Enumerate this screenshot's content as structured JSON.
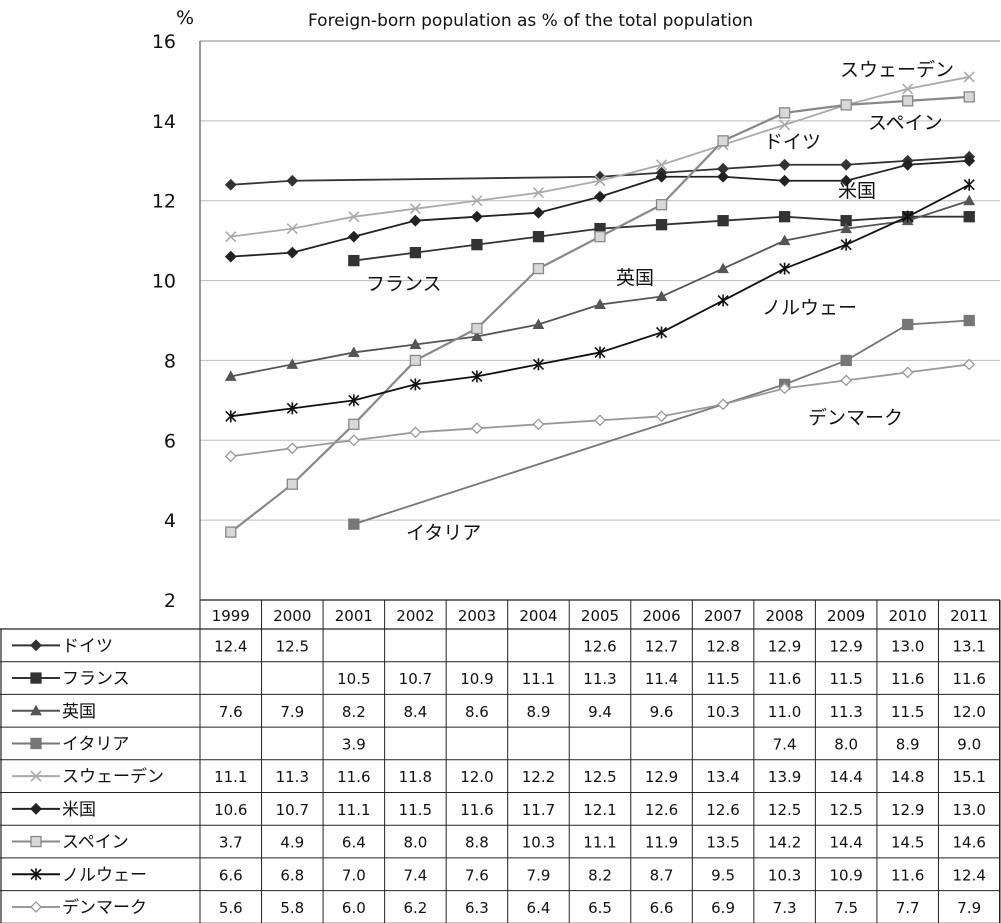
{
  "chart_data": {
    "type": "line",
    "title": "Foreign-born population as % of the total population",
    "ylabel": "%",
    "ylim": [
      2,
      16
    ],
    "yticks": [
      2,
      4,
      6,
      8,
      10,
      12,
      14,
      16
    ],
    "grid": true,
    "categories": [
      "1999",
      "2000",
      "2001",
      "2002",
      "2003",
      "2004",
      "2005",
      "2006",
      "2007",
      "2008",
      "2009",
      "2010",
      "2011"
    ],
    "series": [
      {
        "name": "ドイツ",
        "color": "#333333",
        "marker": "diamond-filled",
        "values": [
          12.4,
          12.5,
          null,
          null,
          null,
          null,
          12.6,
          12.7,
          12.8,
          12.9,
          12.9,
          13.0,
          13.1
        ]
      },
      {
        "name": "フランス",
        "color": "#333333",
        "marker": "square-filled",
        "values": [
          null,
          null,
          10.5,
          10.7,
          10.9,
          11.1,
          11.3,
          11.4,
          11.5,
          11.6,
          11.5,
          11.6,
          11.6
        ]
      },
      {
        "name": "英国",
        "color": "#555555",
        "marker": "triangle-filled",
        "values": [
          7.6,
          7.9,
          8.2,
          8.4,
          8.6,
          8.9,
          9.4,
          9.6,
          10.3,
          11.0,
          11.3,
          11.5,
          12.0
        ]
      },
      {
        "name": "イタリア",
        "color": "#777777",
        "marker": "square-filled",
        "values": [
          null,
          null,
          3.9,
          null,
          null,
          null,
          null,
          null,
          null,
          7.4,
          8.0,
          8.9,
          9.0
        ]
      },
      {
        "name": "スウェーデン",
        "color": "#aaaaaa",
        "marker": "x",
        "values": [
          11.1,
          11.3,
          11.6,
          11.8,
          12.0,
          12.2,
          12.5,
          12.9,
          13.4,
          13.9,
          14.4,
          14.8,
          15.1
        ]
      },
      {
        "name": "米国",
        "color": "#222222",
        "marker": "diamond-filled",
        "values": [
          10.6,
          10.7,
          11.1,
          11.5,
          11.6,
          11.7,
          12.1,
          12.6,
          12.6,
          12.5,
          12.5,
          12.9,
          13.0
        ]
      },
      {
        "name": "スペイン",
        "color": "#888888",
        "marker": "square-open",
        "values": [
          3.7,
          4.9,
          6.4,
          8.0,
          8.8,
          10.3,
          11.1,
          11.9,
          13.5,
          14.2,
          14.4,
          14.5,
          14.6
        ]
      },
      {
        "name": "ノルウェー",
        "color": "#111111",
        "marker": "star",
        "values": [
          6.6,
          6.8,
          7.0,
          7.4,
          7.6,
          7.9,
          8.2,
          8.7,
          9.5,
          10.3,
          10.9,
          11.6,
          12.4
        ]
      },
      {
        "name": "デンマーク",
        "color": "#999999",
        "marker": "diamond-open",
        "values": [
          5.6,
          5.8,
          6.0,
          6.2,
          6.3,
          6.4,
          6.5,
          6.6,
          6.9,
          7.3,
          7.5,
          7.7,
          7.9
        ]
      }
    ],
    "table_cells": [
      [
        "12.4",
        "12.5",
        "",
        "",
        "",
        "",
        "12.6",
        "12.7",
        "12.8",
        "12.9",
        "12.9",
        "13.0",
        "13.1"
      ],
      [
        "",
        "",
        "10.5",
        "10.7",
        "10.9",
        "11.1",
        "11.3",
        "11.4",
        "11.5",
        "11.6",
        "11.5",
        "11.6",
        "11.6"
      ],
      [
        "7.6",
        "7.9",
        "8.2",
        "8.4",
        "8.6",
        "8.9",
        "9.4",
        "9.6",
        "10.3",
        "11.0",
        "11.3",
        "11.5",
        "12.0"
      ],
      [
        "",
        "",
        "3.9",
        "",
        "",
        "",
        "",
        "",
        "",
        "7.4",
        "8.0",
        "8.9",
        "9.0"
      ],
      [
        "11.1",
        "11.3",
        "11.6",
        "11.8",
        "12.0",
        "12.2",
        "12.5",
        "12.9",
        "13.4",
        "13.9",
        "14.4",
        "14.8",
        "15.1"
      ],
      [
        "10.6",
        "10.7",
        "11.1",
        "11.5",
        "11.6",
        "11.7",
        "12.1",
        "12.6",
        "12.6",
        "12.5",
        "12.5",
        "12.9",
        "13.0"
      ],
      [
        "3.7",
        "4.9",
        "6.4",
        "8.0",
        "8.8",
        "10.3",
        "11.1",
        "11.9",
        "13.5",
        "14.2",
        "14.4",
        "14.5",
        "14.6"
      ],
      [
        "6.6",
        "6.8",
        "7.0",
        "7.4",
        "7.6",
        "7.9",
        "8.2",
        "8.7",
        "9.5",
        "10.3",
        "10.9",
        "11.6",
        "12.4"
      ],
      [
        "5.6",
        "5.8",
        "6.0",
        "6.2",
        "6.3",
        "6.4",
        "6.5",
        "6.6",
        "6.9",
        "7.3",
        "7.5",
        "7.7",
        "7.9"
      ]
    ],
    "annotations": [
      {
        "text": "スウェーデン",
        "series": "スウェーデン"
      },
      {
        "text": "スペイン",
        "series": "スペイン"
      },
      {
        "text": "ドイツ",
        "series": "ドイツ"
      },
      {
        "text": "米国",
        "series": "米国"
      },
      {
        "text": "フランス",
        "series": "フランス"
      },
      {
        "text": "英国",
        "series": "英国"
      },
      {
        "text": "ノルウェー",
        "series": "ノルウェー"
      },
      {
        "text": "デンマーク",
        "series": "デンマーク"
      },
      {
        "text": "イタリア",
        "series": "イタリア"
      }
    ]
  }
}
